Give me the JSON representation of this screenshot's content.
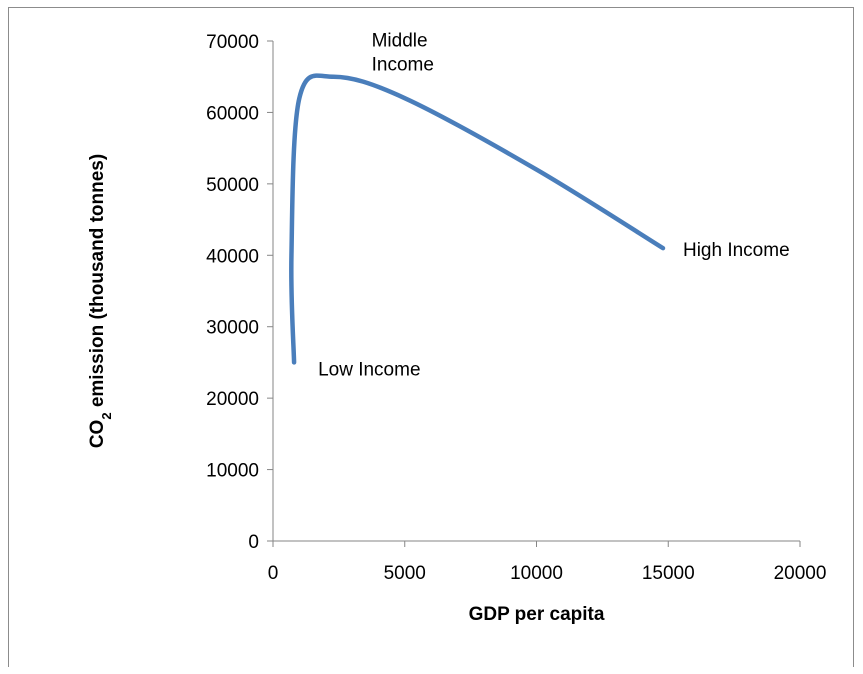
{
  "chart_data": {
    "type": "line",
    "title": "",
    "xlabel": "GDP per capita",
    "ylabel": {
      "prefix": "CO",
      "subscript": "2",
      "suffix": " emission (thousand tonnes)"
    },
    "xlim": [
      0,
      20000
    ],
    "ylim": [
      0,
      70000
    ],
    "x_ticks": [
      0,
      5000,
      10000,
      15000,
      20000
    ],
    "y_ticks": [
      0,
      10000,
      20000,
      30000,
      40000,
      50000,
      60000,
      70000
    ],
    "x_tick_labels": [
      "0",
      "5000",
      "10000",
      "15000",
      "20000"
    ],
    "y_tick_labels": [
      "0",
      "10000",
      "20000",
      "30000",
      "40000",
      "50000",
      "60000",
      "70000"
    ],
    "grid": false,
    "legend": "none",
    "series": [
      {
        "color": "#4a7ebb",
        "points": [
          {
            "x": 800,
            "y": 25000
          },
          {
            "x": 700,
            "y": 40000
          },
          {
            "x": 1000,
            "y": 62000
          },
          {
            "x": 2300,
            "y": 65000
          },
          {
            "x": 5000,
            "y": 62000
          },
          {
            "x": 10000,
            "y": 52000
          },
          {
            "x": 14800,
            "y": 41000
          }
        ]
      }
    ],
    "annotations": [
      {
        "lines": [
          "Low Income"
        ],
        "x": 800,
        "y": 25000
      },
      {
        "lines": [
          "Middle",
          "Income"
        ],
        "x": 2300,
        "y": 65000
      },
      {
        "lines": [
          "High Income"
        ],
        "x": 14800,
        "y": 41000
      }
    ]
  }
}
